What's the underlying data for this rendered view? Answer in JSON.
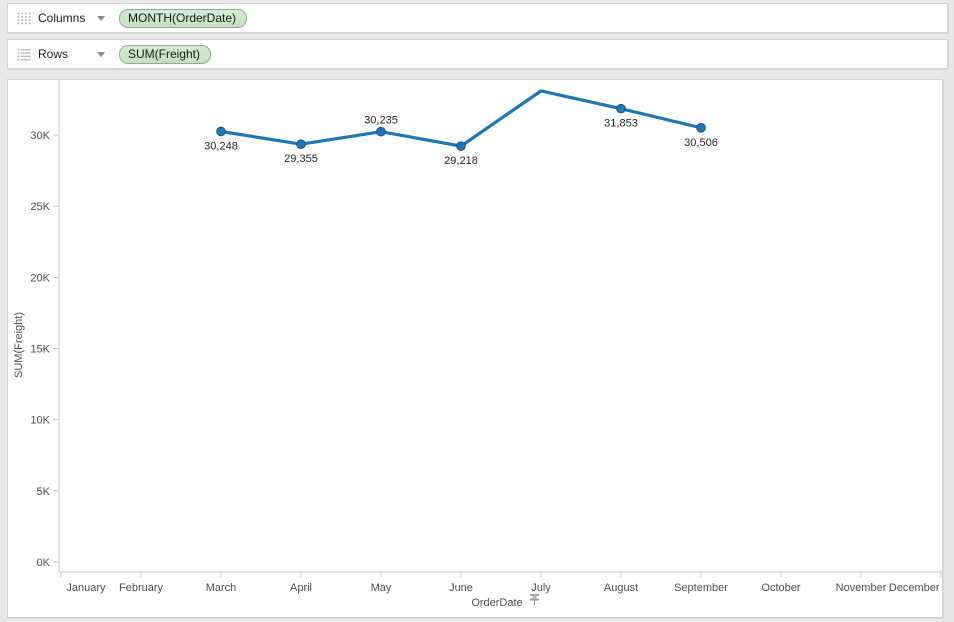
{
  "shelves": {
    "columns": {
      "label": "Columns",
      "pill": "MONTH(OrderDate)"
    },
    "rows": {
      "label": "Rows",
      "pill": "SUM(Freight)"
    }
  },
  "chart_data": {
    "type": "line",
    "title": "",
    "xlabel": "OrderDate",
    "ylabel": "SUM(Freight)",
    "x_axis_pinned": true,
    "grid": false,
    "legend": "none",
    "categories": [
      "January",
      "February",
      "March",
      "April",
      "May",
      "June",
      "July",
      "August",
      "September",
      "October",
      "November",
      "December"
    ],
    "y_ticks": [
      {
        "value": 0,
        "label": "0K"
      },
      {
        "value": 5000,
        "label": "5K"
      },
      {
        "value": 10000,
        "label": "10K"
      },
      {
        "value": 15000,
        "label": "15K"
      },
      {
        "value": 20000,
        "label": "20K"
      },
      {
        "value": 25000,
        "label": "25K"
      },
      {
        "value": 30000,
        "label": "30K"
      }
    ],
    "ylim": [
      0,
      33900
    ],
    "series": [
      {
        "name": "SUM(Freight)",
        "color": "#1f77b4",
        "points": [
          {
            "x": "March",
            "y": 30248,
            "label": "30,248",
            "marker": true,
            "label_pos": "below"
          },
          {
            "x": "April",
            "y": 29355,
            "label": "29,355",
            "marker": true,
            "label_pos": "below"
          },
          {
            "x": "May",
            "y": 30235,
            "label": "30,235",
            "marker": true,
            "label_pos": "above"
          },
          {
            "x": "June",
            "y": 29218,
            "label": "29,218",
            "marker": true,
            "label_pos": "below"
          },
          {
            "x": "July",
            "y": 33100,
            "label": null,
            "marker": false,
            "label_pos": null
          },
          {
            "x": "August",
            "y": 31853,
            "label": "31,853",
            "marker": true,
            "label_pos": "below"
          },
          {
            "x": "September",
            "y": 30506,
            "label": "30,506",
            "marker": true,
            "label_pos": "below"
          }
        ]
      }
    ]
  },
  "colors": {
    "line": "#1f77b4",
    "pill_bg": "#cfe4cc",
    "pill_border": "#8fae8b",
    "axis_line": "#c8c8c8",
    "tick_text": "#4f4f4f",
    "mark_label_text": "#262626"
  }
}
